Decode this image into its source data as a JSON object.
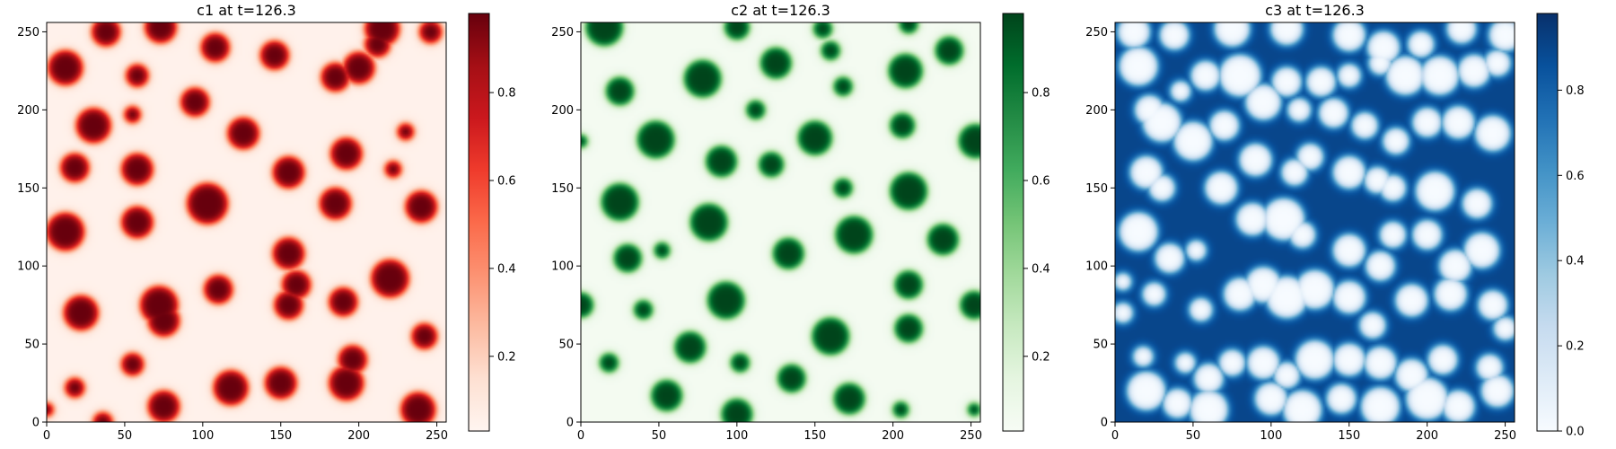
{
  "chart_data": [
    {
      "type": "heatmap",
      "title": "c1 at t=126.3",
      "colormap": "Reds",
      "colors": [
        "#fff5f0",
        "#fee0d2",
        "#fcbba1",
        "#fc9272",
        "#fb6a4a",
        "#ef3b2c",
        "#cb181d",
        "#a50f15",
        "#67000d"
      ],
      "xlim": [
        0,
        256
      ],
      "ylim": [
        0,
        256
      ],
      "xticks": [
        0,
        50,
        100,
        150,
        200,
        250
      ],
      "yticks": [
        0,
        50,
        100,
        150,
        200,
        250
      ],
      "colorbar": {
        "min": 0.03,
        "max": 0.98,
        "ticks": [
          0.2,
          0.4,
          0.6,
          0.8
        ],
        "tick_labels": [
          "0.2",
          "0.4",
          "0.6",
          "0.8"
        ]
      },
      "background_value": 0.05,
      "blobs": [
        [
          38,
          250,
          9
        ],
        [
          73,
          253,
          10
        ],
        [
          215,
          252,
          11
        ],
        [
          12,
          227,
          11
        ],
        [
          58,
          222,
          7
        ],
        [
          108,
          240,
          9
        ],
        [
          146,
          235,
          9
        ],
        [
          200,
          227,
          10
        ],
        [
          185,
          221,
          9
        ],
        [
          246,
          250,
          7
        ],
        [
          212,
          242,
          8
        ],
        [
          30,
          190,
          11
        ],
        [
          95,
          205,
          9
        ],
        [
          55,
          197,
          5
        ],
        [
          126,
          185,
          10
        ],
        [
          230,
          186,
          5
        ],
        [
          192,
          172,
          10
        ],
        [
          222,
          162,
          5
        ],
        [
          18,
          163,
          9
        ],
        [
          58,
          162,
          10
        ],
        [
          155,
          160,
          10
        ],
        [
          103,
          140,
          13
        ],
        [
          58,
          128,
          10
        ],
        [
          12,
          122,
          12
        ],
        [
          185,
          140,
          10
        ],
        [
          240,
          138,
          10
        ],
        [
          155,
          108,
          10
        ],
        [
          160,
          88,
          9
        ],
        [
          220,
          92,
          12
        ],
        [
          22,
          70,
          11
        ],
        [
          72,
          75,
          12
        ],
        [
          110,
          85,
          9
        ],
        [
          155,
          75,
          9
        ],
        [
          190,
          77,
          9
        ],
        [
          75,
          65,
          10
        ],
        [
          242,
          55,
          8
        ],
        [
          55,
          37,
          7
        ],
        [
          118,
          22,
          11
        ],
        [
          150,
          25,
          10
        ],
        [
          192,
          25,
          11
        ],
        [
          196,
          40,
          9
        ],
        [
          18,
          22,
          6
        ],
        [
          75,
          10,
          10
        ],
        [
          238,
          8,
          11
        ],
        [
          36,
          0,
          6
        ],
        [
          0,
          8,
          4
        ]
      ]
    },
    {
      "type": "heatmap",
      "title": "c2 at t=126.3",
      "colormap": "Greens",
      "colors": [
        "#f7fcf5",
        "#e5f5e0",
        "#c7e9c0",
        "#a1d99b",
        "#74c476",
        "#41ab5d",
        "#238b45",
        "#006d2c",
        "#00441b"
      ],
      "xlim": [
        0,
        256
      ],
      "ylim": [
        0,
        256
      ],
      "xticks": [
        0,
        50,
        100,
        150,
        200,
        250
      ],
      "yticks": [
        0,
        50,
        100,
        150,
        200,
        250
      ],
      "colorbar": {
        "min": 0.03,
        "max": 0.98,
        "ticks": [
          0.2,
          0.4,
          0.6,
          0.8
        ],
        "tick_labels": [
          "0.2",
          "0.4",
          "0.6",
          "0.8"
        ]
      },
      "background_value": 0.05,
      "blobs": [
        [
          15,
          253,
          12
        ],
        [
          100,
          253,
          8
        ],
        [
          155,
          252,
          6
        ],
        [
          210,
          255,
          6
        ],
        [
          25,
          212,
          9
        ],
        [
          78,
          220,
          12
        ],
        [
          125,
          230,
          10
        ],
        [
          160,
          238,
          6
        ],
        [
          168,
          215,
          6
        ],
        [
          112,
          200,
          6
        ],
        [
          208,
          225,
          11
        ],
        [
          236,
          238,
          9
        ],
        [
          48,
          181,
          12
        ],
        [
          90,
          167,
          10
        ],
        [
          122,
          165,
          8
        ],
        [
          150,
          182,
          11
        ],
        [
          206,
          190,
          8
        ],
        [
          253,
          180,
          11
        ],
        [
          25,
          141,
          12
        ],
        [
          0,
          180,
          4
        ],
        [
          168,
          150,
          6
        ],
        [
          210,
          148,
          12
        ],
        [
          82,
          128,
          12
        ],
        [
          30,
          105,
          9
        ],
        [
          52,
          110,
          5
        ],
        [
          133,
          108,
          10
        ],
        [
          175,
          120,
          12
        ],
        [
          232,
          117,
          10
        ],
        [
          0,
          75,
          8
        ],
        [
          40,
          72,
          6
        ],
        [
          93,
          78,
          12
        ],
        [
          210,
          88,
          9
        ],
        [
          252,
          75,
          9
        ],
        [
          70,
          48,
          10
        ],
        [
          160,
          55,
          12
        ],
        [
          210,
          60,
          9
        ],
        [
          102,
          38,
          6
        ],
        [
          18,
          38,
          6
        ],
        [
          135,
          28,
          9
        ],
        [
          55,
          17,
          10
        ],
        [
          100,
          5,
          10
        ],
        [
          172,
          15,
          10
        ],
        [
          205,
          8,
          5
        ],
        [
          252,
          8,
          4
        ]
      ]
    },
    {
      "type": "heatmap",
      "title": "c3 at t=126.3",
      "colormap": "Blues",
      "colors": [
        "#f7fbff",
        "#deebf7",
        "#c6dbef",
        "#9ecae1",
        "#6baed6",
        "#4292c6",
        "#2171b5",
        "#08519c",
        "#08306b"
      ],
      "xlim": [
        0,
        256
      ],
      "ylim": [
        0,
        256
      ],
      "xticks": [
        0,
        50,
        100,
        150,
        200,
        250
      ],
      "yticks": [
        0,
        50,
        100,
        150,
        200,
        250
      ],
      "colorbar": {
        "min": 0.0,
        "max": 0.98,
        "ticks": [
          0.0,
          0.2,
          0.4,
          0.6,
          0.8
        ],
        "tick_labels": [
          "0.0",
          "0.2",
          "0.4",
          "0.6",
          "0.8"
        ]
      },
      "background_value": 0.9,
      "blobs": [
        [
          12,
          250,
          10
        ],
        [
          38,
          248,
          9
        ],
        [
          75,
          252,
          11
        ],
        [
          110,
          252,
          10
        ],
        [
          150,
          248,
          10
        ],
        [
          172,
          240,
          10
        ],
        [
          196,
          242,
          8
        ],
        [
          222,
          252,
          9
        ],
        [
          250,
          248,
          10
        ],
        [
          15,
          228,
          12
        ],
        [
          58,
          222,
          9
        ],
        [
          80,
          222,
          13
        ],
        [
          110,
          218,
          9
        ],
        [
          132,
          218,
          9
        ],
        [
          150,
          222,
          7
        ],
        [
          170,
          230,
          7
        ],
        [
          186,
          222,
          12
        ],
        [
          208,
          222,
          12
        ],
        [
          230,
          225,
          10
        ],
        [
          245,
          230,
          8
        ],
        [
          22,
          200,
          9
        ],
        [
          42,
          212,
          6
        ],
        [
          30,
          192,
          12
        ],
        [
          50,
          180,
          12
        ],
        [
          70,
          190,
          9
        ],
        [
          95,
          205,
          11
        ],
        [
          118,
          200,
          7
        ],
        [
          140,
          198,
          9
        ],
        [
          160,
          190,
          8
        ],
        [
          180,
          180,
          8
        ],
        [
          200,
          192,
          9
        ],
        [
          220,
          192,
          10
        ],
        [
          242,
          185,
          11
        ],
        [
          20,
          160,
          10
        ],
        [
          68,
          150,
          10
        ],
        [
          90,
          168,
          10
        ],
        [
          115,
          160,
          8
        ],
        [
          125,
          170,
          8
        ],
        [
          150,
          160,
          10
        ],
        [
          168,
          155,
          8
        ],
        [
          178,
          150,
          8
        ],
        [
          205,
          148,
          12
        ],
        [
          232,
          140,
          9
        ],
        [
          30,
          150,
          8
        ],
        [
          15,
          122,
          12
        ],
        [
          35,
          105,
          9
        ],
        [
          52,
          110,
          6
        ],
        [
          88,
          130,
          10
        ],
        [
          108,
          130,
          13
        ],
        [
          120,
          120,
          8
        ],
        [
          150,
          110,
          10
        ],
        [
          170,
          100,
          9
        ],
        [
          178,
          120,
          8
        ],
        [
          200,
          120,
          9
        ],
        [
          218,
          100,
          10
        ],
        [
          235,
          110,
          11
        ],
        [
          5,
          90,
          5
        ],
        [
          25,
          82,
          7
        ],
        [
          55,
          72,
          7
        ],
        [
          80,
          82,
          10
        ],
        [
          95,
          88,
          11
        ],
        [
          110,
          80,
          13
        ],
        [
          128,
          85,
          12
        ],
        [
          150,
          80,
          10
        ],
        [
          165,
          62,
          8
        ],
        [
          190,
          78,
          10
        ],
        [
          215,
          82,
          10
        ],
        [
          242,
          75,
          9
        ],
        [
          250,
          60,
          7
        ],
        [
          5,
          70,
          6
        ],
        [
          18,
          42,
          6
        ],
        [
          45,
          38,
          6
        ],
        [
          60,
          28,
          9
        ],
        [
          75,
          38,
          8
        ],
        [
          95,
          38,
          10
        ],
        [
          110,
          30,
          8
        ],
        [
          128,
          40,
          12
        ],
        [
          150,
          40,
          10
        ],
        [
          170,
          38,
          10
        ],
        [
          190,
          30,
          10
        ],
        [
          210,
          40,
          9
        ],
        [
          240,
          35,
          8
        ],
        [
          20,
          20,
          12
        ],
        [
          40,
          12,
          9
        ],
        [
          60,
          8,
          12
        ],
        [
          100,
          15,
          10
        ],
        [
          120,
          8,
          12
        ],
        [
          145,
          15,
          9
        ],
        [
          170,
          10,
          12
        ],
        [
          200,
          15,
          13
        ],
        [
          220,
          10,
          10
        ],
        [
          245,
          20,
          10
        ]
      ]
    }
  ]
}
